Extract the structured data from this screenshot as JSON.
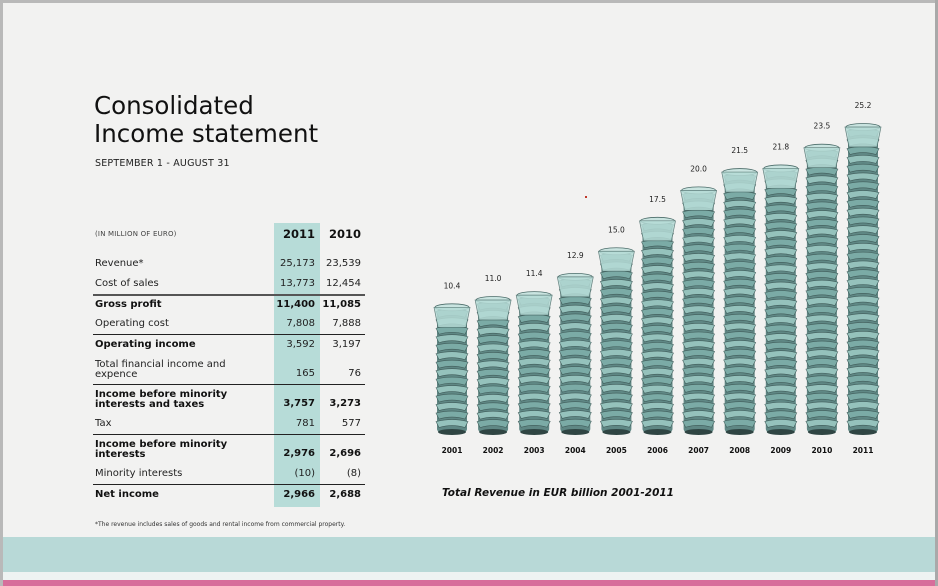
{
  "page": {
    "title": "Consolidated\nIncome statement",
    "subtitle": "SEPTEMBER 1 - AUGUST 31",
    "footnote": "*The revenue includes sales of goods and rental income from commercial property."
  },
  "colors": {
    "highlight": "#b7dcd8",
    "band": "#b8d9d7",
    "accent_pink": "#d76e9b",
    "glass": "#8fc1bb"
  },
  "table": {
    "unit_label": "(IN MILLION OF EURO)",
    "columns": [
      "2011",
      "2010"
    ],
    "rows": [
      {
        "label": "Revenue*",
        "v2011": "25,173",
        "v2010": "23,539"
      },
      {
        "label": "Cost of sales",
        "v2011": "13,773",
        "v2010": "12,454"
      },
      {
        "label": "Gross profit",
        "v2011": "11,400",
        "v2010": "11,085"
      },
      {
        "label": "Operating cost",
        "v2011": "7,808",
        "v2010": "7,888"
      },
      {
        "label": "Operating income",
        "v2011": "3,592",
        "v2010": "3,197"
      },
      {
        "label": "Total financial income and expence",
        "v2011": "165",
        "v2010": "76"
      },
      {
        "label": "Income before minority interests and taxes",
        "v2011": "3,757",
        "v2010": "3,273"
      },
      {
        "label": "Tax",
        "v2011": "781",
        "v2010": "577"
      },
      {
        "label": "Income before minority interests",
        "v2011": "2,976",
        "v2010": "2,696"
      },
      {
        "label": "Minority interests",
        "v2011": "(10)",
        "v2010": "(8)"
      },
      {
        "label": "Net income",
        "v2011": "2,966",
        "v2010": "2,688"
      }
    ]
  },
  "chart_data": {
    "type": "bar",
    "title": "Total Revenue in EUR billion 2001-2011",
    "xlabel": "",
    "ylabel": "",
    "categories": [
      "2001",
      "2002",
      "2003",
      "2004",
      "2005",
      "2006",
      "2007",
      "2008",
      "2009",
      "2010",
      "2011"
    ],
    "values": [
      10.4,
      11.0,
      11.4,
      12.9,
      15.0,
      17.5,
      20.0,
      21.5,
      21.8,
      23.5,
      25.2
    ],
    "data_labels": [
      "10.4",
      "11.0",
      "11.4",
      "12.9",
      "15.0",
      "17.5",
      "20.0",
      "21.5",
      "21.8",
      "23.5",
      "25.2"
    ],
    "ylim": [
      0,
      25.2
    ],
    "grid": false,
    "legend": "none",
    "mark_style": "stacked glasses"
  }
}
